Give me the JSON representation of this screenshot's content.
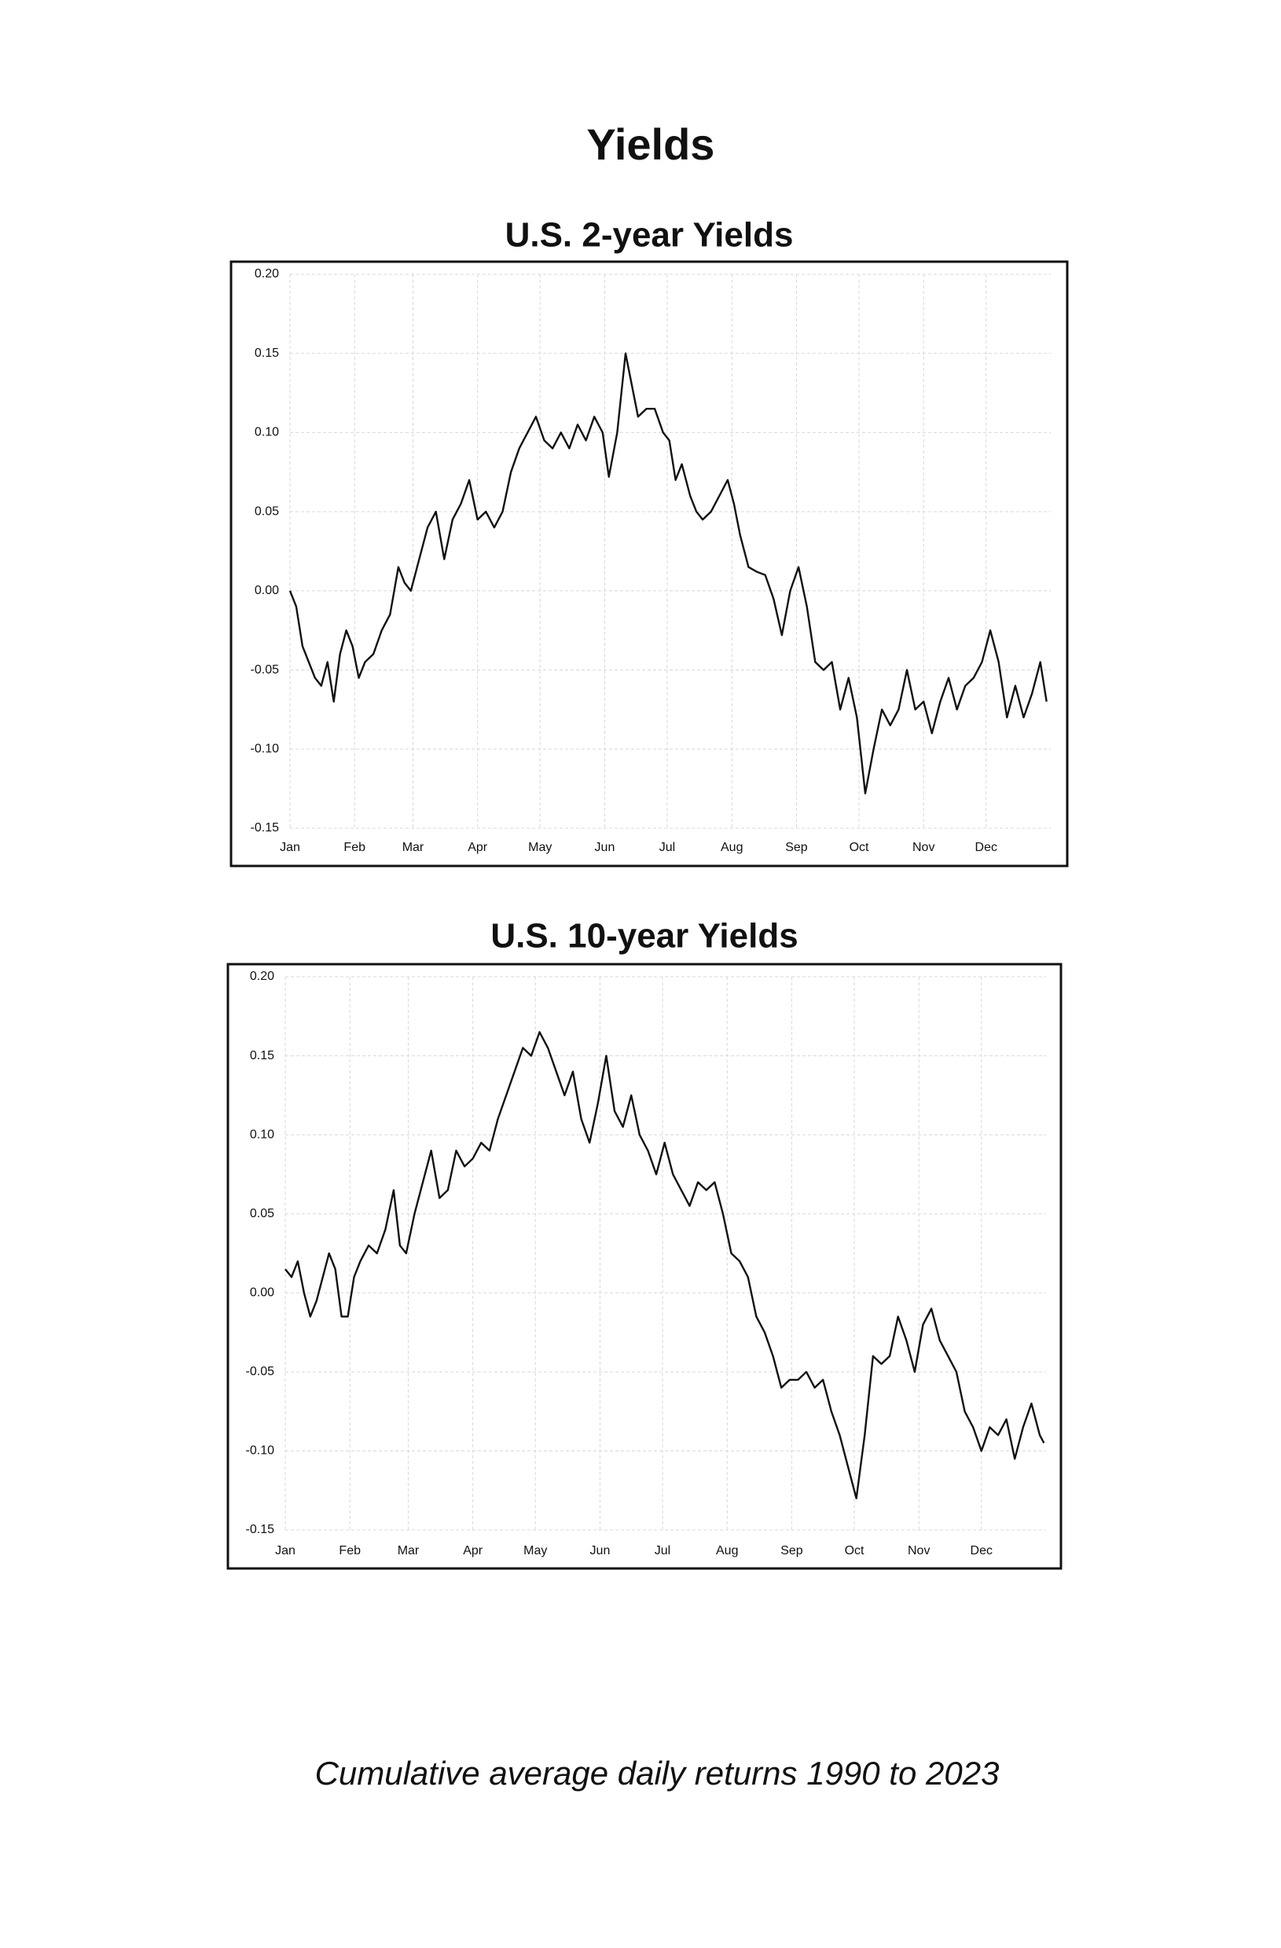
{
  "title": "Yields",
  "footer": "Cumulative average daily returns 1990 to 2023",
  "chart_data": [
    {
      "type": "line",
      "title": "U.S. 2-year Yields",
      "color": "#111111",
      "grid": true,
      "xlim": [
        0,
        365
      ],
      "xticks": [
        {
          "value": 0,
          "label": "Jan"
        },
        {
          "value": 31,
          "label": "Feb"
        },
        {
          "value": 59,
          "label": "Mar"
        },
        {
          "value": 90,
          "label": "Apr"
        },
        {
          "value": 120,
          "label": "May"
        },
        {
          "value": 151,
          "label": "Jun"
        },
        {
          "value": 181,
          "label": "Jul"
        },
        {
          "value": 212,
          "label": "Aug"
        },
        {
          "value": 243,
          "label": "Sep"
        },
        {
          "value": 273,
          "label": "Oct"
        },
        {
          "value": 304,
          "label": "Nov"
        },
        {
          "value": 334,
          "label": "Dec"
        }
      ],
      "ylim": [
        -0.15,
        0.2
      ],
      "yticks": [
        {
          "value": 0.2,
          "label": "0.20"
        },
        {
          "value": 0.15,
          "label": "0.15"
        },
        {
          "value": 0.1,
          "label": "0.10"
        },
        {
          "value": 0.05,
          "label": "0.05"
        },
        {
          "value": 0,
          "label": "0.00"
        },
        {
          "value": -0.05,
          "label": "-0.05"
        },
        {
          "value": -0.1,
          "label": "-0.10"
        },
        {
          "value": -0.15,
          "label": "-0.15"
        }
      ],
      "x": [
        0,
        3,
        6,
        9,
        12,
        15,
        18,
        21,
        24,
        27,
        30,
        33,
        36,
        40,
        44,
        48,
        52,
        55,
        58,
        62,
        66,
        70,
        74,
        78,
        82,
        86,
        90,
        94,
        98,
        102,
        106,
        110,
        114,
        118,
        122,
        126,
        130,
        134,
        138,
        142,
        146,
        150,
        153,
        157,
        161,
        164,
        167,
        171,
        175,
        179,
        182,
        185,
        188,
        192,
        195,
        198,
        202,
        206,
        210,
        213,
        216,
        220,
        224,
        228,
        232,
        236,
        240,
        244,
        248,
        252,
        256,
        260,
        264,
        268,
        272,
        276,
        280,
        284,
        288,
        292,
        296,
        300,
        304,
        308,
        312,
        316,
        320,
        324,
        328,
        332,
        336,
        340,
        344,
        348,
        352,
        356,
        360,
        363
      ],
      "values": [
        0.0,
        -0.01,
        -0.035,
        -0.045,
        -0.055,
        -0.06,
        -0.045,
        -0.07,
        -0.04,
        -0.025,
        -0.035,
        -0.055,
        -0.045,
        -0.04,
        -0.025,
        -0.015,
        0.015,
        0.005,
        0.0,
        0.02,
        0.04,
        0.05,
        0.02,
        0.045,
        0.055,
        0.07,
        0.045,
        0.05,
        0.04,
        0.05,
        0.075,
        0.09,
        0.1,
        0.11,
        0.095,
        0.09,
        0.1,
        0.09,
        0.105,
        0.095,
        0.11,
        0.1,
        0.072,
        0.1,
        0.15,
        0.13,
        0.11,
        0.115,
        0.115,
        0.1,
        0.095,
        0.07,
        0.08,
        0.06,
        0.05,
        0.045,
        0.05,
        0.06,
        0.07,
        0.055,
        0.035,
        0.015,
        0.012,
        0.01,
        -0.005,
        -0.028,
        0.0,
        0.015,
        -0.01,
        -0.045,
        -0.05,
        -0.045,
        -0.075,
        -0.055,
        -0.08,
        -0.128,
        -0.1,
        -0.075,
        -0.085,
        -0.075,
        -0.05,
        -0.075,
        -0.07,
        -0.09,
        -0.07,
        -0.055,
        -0.075,
        -0.06,
        -0.055,
        -0.045,
        -0.025,
        -0.045,
        -0.08,
        -0.06,
        -0.08,
        -0.065,
        -0.045,
        -0.07
      ]
    },
    {
      "type": "line",
      "title": "U.S. 10-year Yields",
      "color": "#111111",
      "grid": true,
      "xlim": [
        0,
        365
      ],
      "xticks": [
        {
          "value": 0,
          "label": "Jan"
        },
        {
          "value": 31,
          "label": "Feb"
        },
        {
          "value": 59,
          "label": "Mar"
        },
        {
          "value": 90,
          "label": "Apr"
        },
        {
          "value": 120,
          "label": "May"
        },
        {
          "value": 151,
          "label": "Jun"
        },
        {
          "value": 181,
          "label": "Jul"
        },
        {
          "value": 212,
          "label": "Aug"
        },
        {
          "value": 243,
          "label": "Sep"
        },
        {
          "value": 273,
          "label": "Oct"
        },
        {
          "value": 304,
          "label": "Nov"
        },
        {
          "value": 334,
          "label": "Dec"
        }
      ],
      "ylim": [
        -0.15,
        0.2
      ],
      "yticks": [
        {
          "value": 0.2,
          "label": "0.20"
        },
        {
          "value": 0.15,
          "label": "0.15"
        },
        {
          "value": 0.1,
          "label": "0.10"
        },
        {
          "value": 0.05,
          "label": "0.05"
        },
        {
          "value": 0,
          "label": "0.00"
        },
        {
          "value": -0.05,
          "label": "-0.05"
        },
        {
          "value": -0.1,
          "label": "-0.10"
        },
        {
          "value": -0.15,
          "label": "-0.15"
        }
      ],
      "x": [
        0,
        3,
        6,
        9,
        12,
        15,
        18,
        21,
        24,
        27,
        30,
        33,
        36,
        40,
        44,
        48,
        52,
        55,
        58,
        62,
        66,
        70,
        74,
        78,
        82,
        86,
        90,
        94,
        98,
        102,
        106,
        110,
        114,
        118,
        122,
        126,
        130,
        134,
        138,
        142,
        146,
        150,
        154,
        158,
        162,
        166,
        170,
        174,
        178,
        182,
        186,
        190,
        194,
        198,
        202,
        206,
        210,
        214,
        218,
        222,
        226,
        230,
        234,
        238,
        242,
        246,
        250,
        254,
        258,
        262,
        266,
        270,
        274,
        278,
        282,
        286,
        290,
        294,
        298,
        302,
        306,
        310,
        314,
        318,
        322,
        326,
        330,
        334,
        338,
        342,
        346,
        350,
        354,
        358,
        362,
        364
      ],
      "values": [
        0.015,
        0.01,
        0.02,
        0.0,
        -0.015,
        -0.005,
        0.01,
        0.025,
        0.015,
        -0.015,
        -0.015,
        0.01,
        0.02,
        0.03,
        0.025,
        0.04,
        0.065,
        0.03,
        0.025,
        0.05,
        0.07,
        0.09,
        0.06,
        0.065,
        0.09,
        0.08,
        0.085,
        0.095,
        0.09,
        0.11,
        0.125,
        0.14,
        0.155,
        0.15,
        0.165,
        0.155,
        0.14,
        0.125,
        0.14,
        0.11,
        0.095,
        0.12,
        0.15,
        0.115,
        0.105,
        0.125,
        0.1,
        0.09,
        0.075,
        0.095,
        0.075,
        0.065,
        0.055,
        0.07,
        0.065,
        0.07,
        0.05,
        0.025,
        0.02,
        0.01,
        -0.015,
        -0.025,
        -0.04,
        -0.06,
        -0.055,
        -0.055,
        -0.05,
        -0.06,
        -0.055,
        -0.075,
        -0.09,
        -0.11,
        -0.13,
        -0.09,
        -0.04,
        -0.045,
        -0.04,
        -0.015,
        -0.03,
        -0.05,
        -0.02,
        -0.01,
        -0.03,
        -0.04,
        -0.05,
        -0.075,
        -0.085,
        -0.1,
        -0.085,
        -0.09,
        -0.08,
        -0.105,
        -0.085,
        -0.07,
        -0.09,
        -0.095
      ]
    }
  ]
}
